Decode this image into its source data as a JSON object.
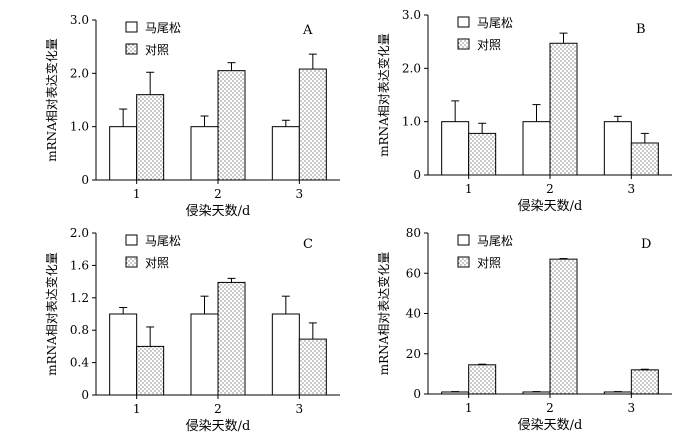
{
  "chart_data": [
    {
      "panel_label": "A",
      "type": "bar",
      "ylabel": "mRNA相对表达变化量",
      "xlabel": "侵染天数/d",
      "categories": [
        "1",
        "2",
        "3"
      ],
      "ylim": [
        0,
        3.0
      ],
      "yticks": [
        "0",
        "1.0",
        "2.0",
        "3.0"
      ],
      "legend_position": "top-left",
      "series": [
        {
          "name": "马尾松",
          "values": [
            1.0,
            1.0,
            1.0
          ],
          "errors": [
            0.33,
            0.2,
            0.12
          ]
        },
        {
          "name": "对照",
          "values": [
            1.6,
            2.05,
            2.08
          ],
          "errors": [
            0.42,
            0.15,
            0.28
          ]
        }
      ]
    },
    {
      "panel_label": "B",
      "type": "bar",
      "ylabel": "mRNA相对表达变化量",
      "xlabel": "侵染天数/d",
      "categories": [
        "1",
        "2",
        "3"
      ],
      "ylim": [
        0,
        3.0
      ],
      "yticks": [
        "0",
        "1.0",
        "2.0",
        "3.0"
      ],
      "legend_position": "top-left",
      "series": [
        {
          "name": "马尾松",
          "values": [
            1.0,
            1.0,
            1.0
          ],
          "errors": [
            0.39,
            0.32,
            0.1
          ]
        },
        {
          "name": "对照",
          "values": [
            0.78,
            2.47,
            0.6
          ],
          "errors": [
            0.19,
            0.19,
            0.18
          ]
        }
      ]
    },
    {
      "panel_label": "C",
      "type": "bar",
      "ylabel": "mRNA相对表达变化量",
      "xlabel": "侵染天数/d",
      "categories": [
        "1",
        "2",
        "3"
      ],
      "ylim": [
        0,
        2.0
      ],
      "yticks": [
        "0",
        "0.4",
        "0.8",
        "1.2",
        "1.6",
        "2.0"
      ],
      "legend_position": "top-left",
      "series": [
        {
          "name": "马尾松",
          "values": [
            1.0,
            1.0,
            1.0
          ],
          "errors": [
            0.08,
            0.22,
            0.22
          ]
        },
        {
          "name": "对照",
          "values": [
            0.6,
            1.39,
            0.69
          ],
          "errors": [
            0.24,
            0.05,
            0.2
          ]
        }
      ]
    },
    {
      "panel_label": "D",
      "type": "bar",
      "ylabel": "mRNA相对表达变化量",
      "xlabel": "侵染天数/d",
      "categories": [
        "1",
        "2",
        "3"
      ],
      "ylim": [
        0,
        80
      ],
      "yticks": [
        "0",
        "20",
        "40",
        "60",
        "80"
      ],
      "legend_position": "top-left",
      "series": [
        {
          "name": "马尾松",
          "values": [
            1,
            1,
            1
          ],
          "errors": [
            0.2,
            0.2,
            0.2
          ]
        },
        {
          "name": "对照",
          "values": [
            14.5,
            67,
            12
          ],
          "errors": [
            0.3,
            0.3,
            0.3
          ]
        }
      ]
    }
  ]
}
